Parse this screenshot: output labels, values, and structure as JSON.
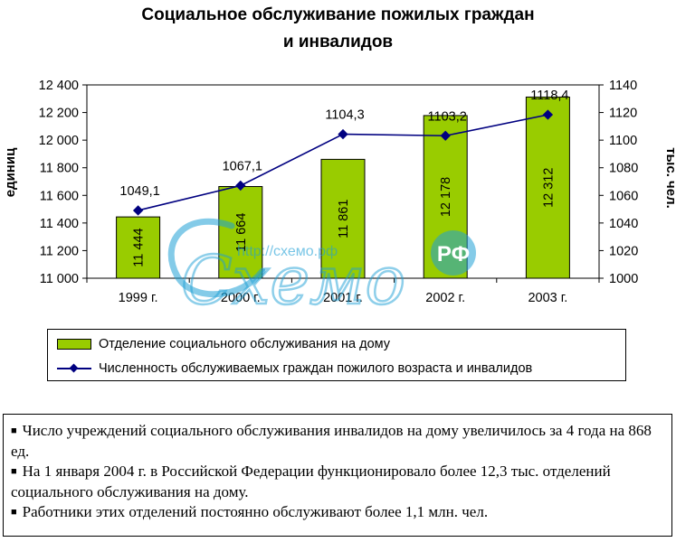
{
  "title_lines": [
    "Социальное обслуживание пожилых граждан",
    "и инвалидов"
  ],
  "chart_data": {
    "type": "bar",
    "categories": [
      "1999 г.",
      "2000 г.",
      "2001 г.",
      "2002 г.",
      "2003 г."
    ],
    "series": [
      {
        "name": "Отделение социального обслуживания на дому",
        "type": "bar",
        "axis": "left",
        "values": [
          11444,
          11664,
          11861,
          12178,
          12312
        ],
        "labels": [
          "11 444",
          "11 664",
          "11 861",
          "12 178",
          "12 312"
        ],
        "color": "#99cc00"
      },
      {
        "name": "Численность обслуживаемых граждан пожилого возраста и инвалидов",
        "type": "line",
        "axis": "right",
        "values": [
          1049.1,
          1067.1,
          1104.3,
          1103.2,
          1118.4
        ],
        "labels": [
          "1049,1",
          "1067,1",
          "1104,3",
          "1103,2",
          "1118,4"
        ],
        "color": "#000080"
      }
    ],
    "ylabel": "единиц",
    "y2label": "тыс. чел.",
    "ylim": [
      11000,
      12400
    ],
    "yticks": [
      11000,
      11200,
      11400,
      11600,
      11800,
      12000,
      12200,
      12400
    ],
    "yticklabels": [
      "11 000",
      "11 200",
      "11 400",
      "11 600",
      "11 800",
      "12 000",
      "12 200",
      "12 400"
    ],
    "y2lim": [
      1000,
      1140
    ],
    "y2ticks": [
      1000,
      1020,
      1040,
      1060,
      1080,
      1100,
      1120,
      1140
    ],
    "y2ticklabels": [
      "1000",
      "1020",
      "1040",
      "1060",
      "1080",
      "1100",
      "1120",
      "1140"
    ],
    "grid": false,
    "legend": "bottom"
  },
  "notes": [
    "Число учреждений социального обслуживания инвалидов на дому увеличилось за 4 года на 868 ед.",
    "На 1 января 2004 г. в Российской Федерации функционировало более 12,3 тыс. отделений социального обслуживания на дому.",
    "Работники этих отделений постоянно обслуживают более 1,1 млн. чел."
  ],
  "watermark": {
    "text": "Схемо",
    "url": "http://схемо.рф",
    "badge": "РФ",
    "color": "#1fa0d6"
  }
}
